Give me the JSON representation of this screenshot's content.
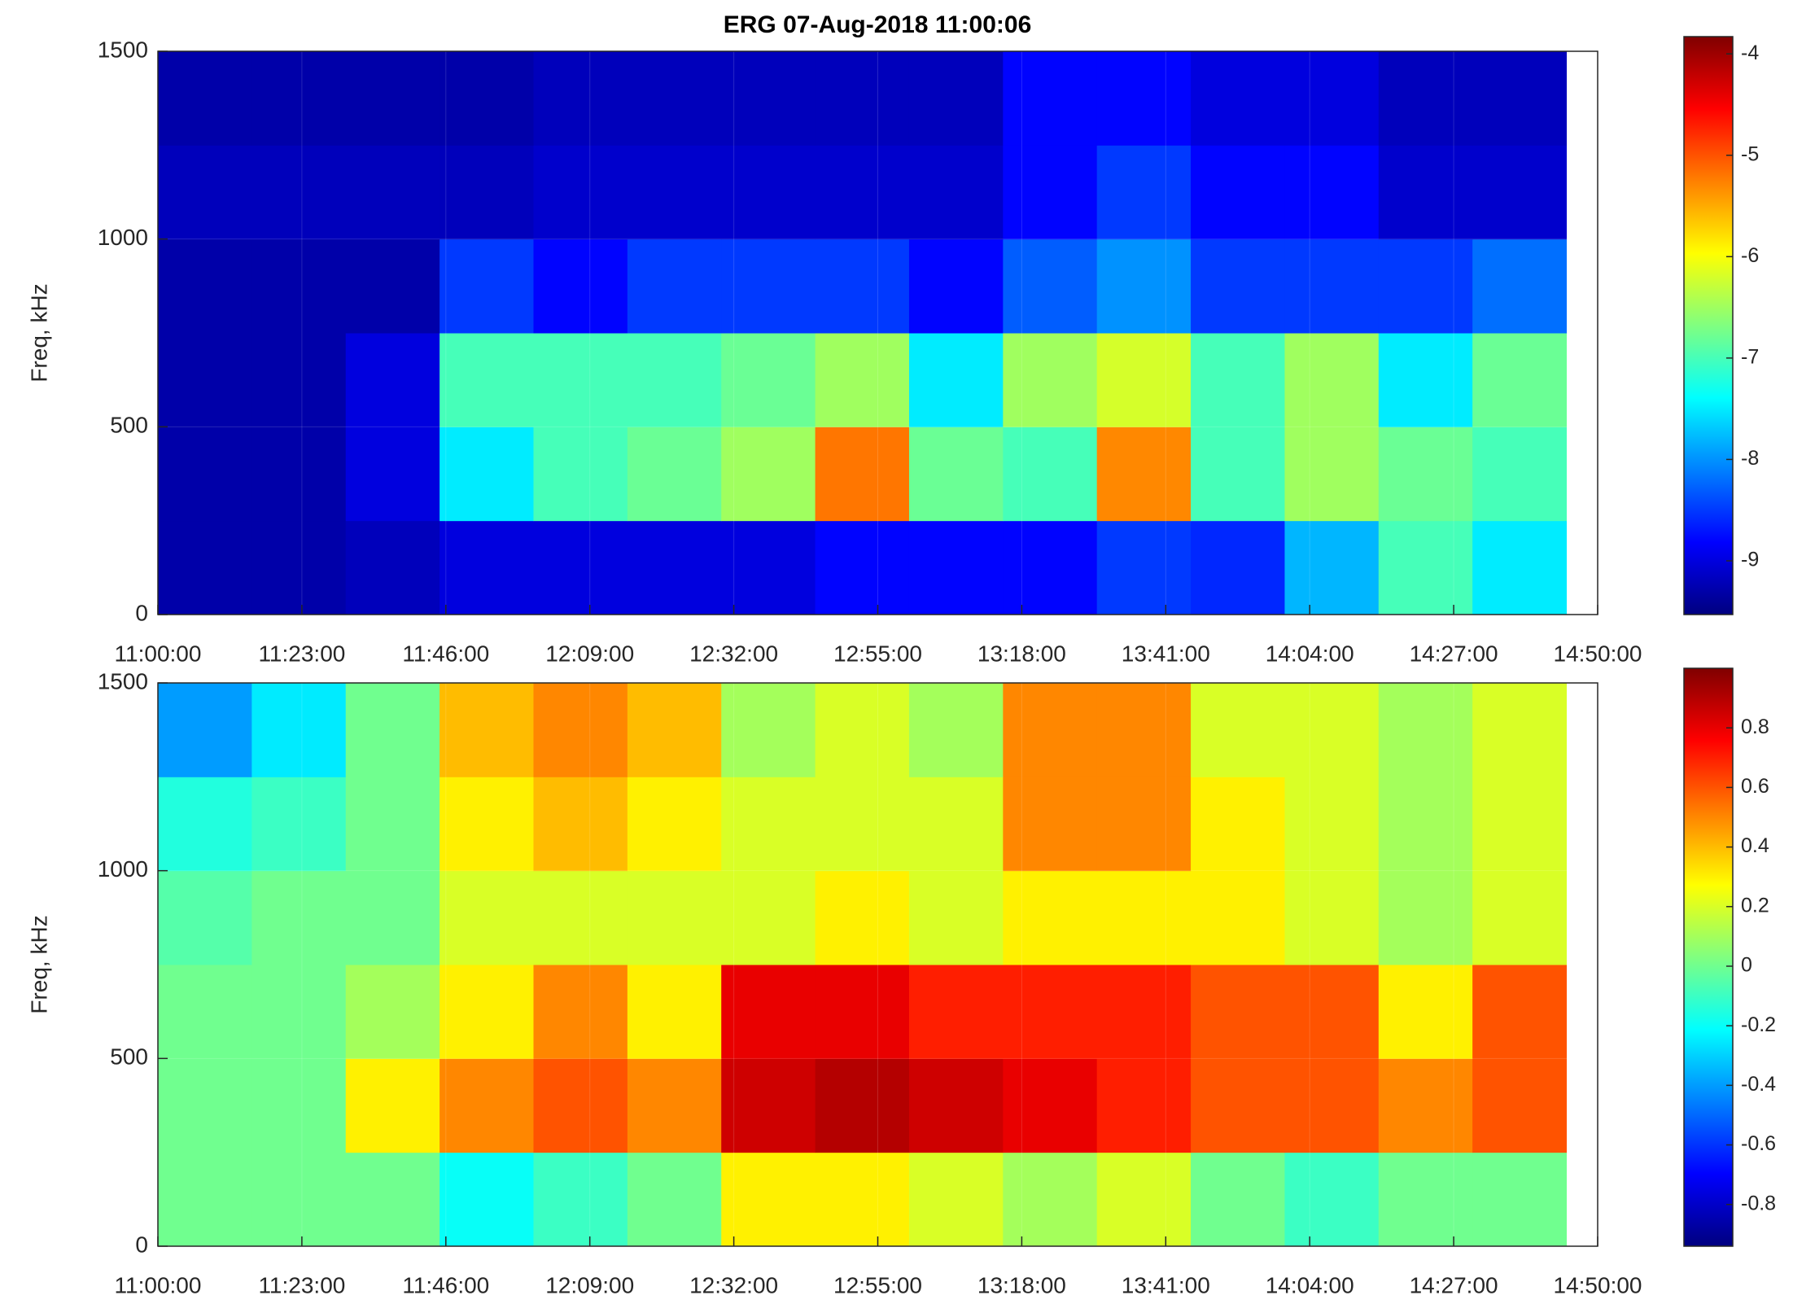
{
  "chart_data": [
    {
      "type": "heatmap",
      "title": "ERG  07-Aug-2018 11:00:06",
      "ylabel": "Freq, kHz",
      "colormap": "jet",
      "grid": true,
      "xlim": [
        "11:00:00",
        "14:50:00"
      ],
      "xticks": [
        "11:00:00",
        "11:23:00",
        "11:46:00",
        "12:09:00",
        "12:32:00",
        "12:55:00",
        "13:18:00",
        "13:41:00",
        "14:04:00",
        "14:27:00",
        "14:50:00"
      ],
      "ylim": [
        0,
        1500
      ],
      "yticks": [
        0,
        500,
        1000,
        1500
      ],
      "x_bins": [
        "11:00:00",
        "11:15:00",
        "11:30:00",
        "11:45:00",
        "12:00:00",
        "12:15:00",
        "12:30:00",
        "12:45:00",
        "13:00:00",
        "13:15:00",
        "13:30:00",
        "13:45:00",
        "14:00:00",
        "14:15:00",
        "14:30:00",
        "14:45:00"
      ],
      "y_bins": [
        0,
        250,
        500,
        750,
        1000,
        1250,
        1500
      ],
      "values": [
        [
          -9.3,
          -9.3,
          -9.2,
          -9.0,
          -9.0,
          -9.0,
          -9.0,
          -8.8,
          -8.8,
          -8.8,
          -8.5,
          -8.6,
          -7.8,
          -7.0,
          -7.5
        ],
        [
          -9.3,
          -9.3,
          -9.0,
          -7.5,
          -7.0,
          -6.8,
          -6.5,
          -5.2,
          -6.8,
          -7.0,
          -5.3,
          -7.0,
          -6.5,
          -6.8,
          -7.0
        ],
        [
          -9.3,
          -9.3,
          -9.0,
          -7.0,
          -7.0,
          -7.0,
          -6.8,
          -6.5,
          -7.5,
          -6.5,
          -6.2,
          -7.0,
          -6.5,
          -7.5,
          -6.8
        ],
        [
          -9.3,
          -9.3,
          -9.3,
          -8.5,
          -8.8,
          -8.5,
          -8.5,
          -8.5,
          -8.8,
          -8.3,
          -8.0,
          -8.5,
          -8.5,
          -8.5,
          -8.2
        ],
        [
          -9.2,
          -9.2,
          -9.2,
          -9.2,
          -9.1,
          -9.1,
          -9.1,
          -9.1,
          -9.1,
          -8.8,
          -8.5,
          -8.8,
          -8.8,
          -9.1,
          -9.1
        ],
        [
          -9.3,
          -9.3,
          -9.3,
          -9.3,
          -9.2,
          -9.2,
          -9.2,
          -9.2,
          -9.2,
          -8.8,
          -8.8,
          -9.0,
          -9.0,
          -9.2,
          -9.2
        ]
      ],
      "clim": [
        -9.53,
        -3.83
      ],
      "cticks": [
        -9,
        -8,
        -7,
        -6,
        -5,
        -4
      ]
    },
    {
      "type": "heatmap",
      "ylabel": "Freq, kHz",
      "colormap": "jet",
      "grid": true,
      "xlim": [
        "11:00:00",
        "14:50:00"
      ],
      "xticks": [
        "11:00:00",
        "11:23:00",
        "11:46:00",
        "12:09:00",
        "12:32:00",
        "12:55:00",
        "13:18:00",
        "13:41:00",
        "14:04:00",
        "14:27:00",
        "14:50:00"
      ],
      "ylim": [
        0,
        1500
      ],
      "yticks": [
        0,
        500,
        1000,
        1500
      ],
      "x_bins": [
        "11:00:00",
        "11:15:00",
        "11:30:00",
        "11:45:00",
        "12:00:00",
        "12:15:00",
        "12:30:00",
        "12:45:00",
        "13:00:00",
        "13:15:00",
        "13:30:00",
        "13:45:00",
        "14:00:00",
        "14:15:00",
        "14:30:00",
        "14:45:00"
      ],
      "y_bins": [
        0,
        250,
        500,
        750,
        1000,
        1250,
        1500
      ],
      "values": [
        [
          0.0,
          0.0,
          0.0,
          -0.2,
          -0.1,
          0.0,
          0.3,
          0.3,
          0.2,
          0.1,
          0.2,
          0.0,
          -0.1,
          0.0,
          0.0
        ],
        [
          0.0,
          0.0,
          0.3,
          0.5,
          0.6,
          0.5,
          0.85,
          0.9,
          0.85,
          0.8,
          0.7,
          0.6,
          0.6,
          0.5,
          0.6
        ],
        [
          0.0,
          0.0,
          0.1,
          0.3,
          0.5,
          0.3,
          0.8,
          0.8,
          0.7,
          0.7,
          0.7,
          0.6,
          0.6,
          0.3,
          0.6
        ],
        [
          -0.05,
          0.0,
          0.0,
          0.2,
          0.2,
          0.2,
          0.2,
          0.3,
          0.2,
          0.3,
          0.3,
          0.3,
          0.2,
          0.1,
          0.2
        ],
        [
          -0.15,
          -0.1,
          0.0,
          0.3,
          0.4,
          0.3,
          0.2,
          0.2,
          0.2,
          0.5,
          0.5,
          0.3,
          0.2,
          0.1,
          0.2
        ],
        [
          -0.4,
          -0.25,
          0.0,
          0.4,
          0.5,
          0.4,
          0.1,
          0.2,
          0.1,
          0.5,
          0.5,
          0.2,
          0.2,
          0.1,
          0.2
        ]
      ],
      "clim": [
        -0.94,
        1.0
      ],
      "cticks": [
        -0.8,
        -0.6,
        -0.4,
        -0.2,
        0,
        0.2,
        0.4,
        0.6,
        0.8
      ]
    }
  ]
}
